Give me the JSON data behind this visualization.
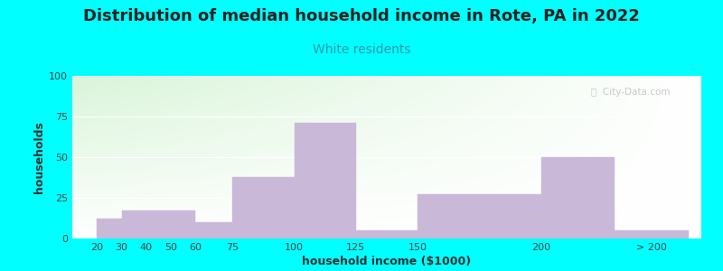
{
  "title": "Distribution of median household income in Rote, PA in 2022",
  "subtitle": "White residents",
  "xlabel": "household income ($1000)",
  "ylabel": "households",
  "bar_labels": [
    "20",
    "30",
    "40",
    "50",
    "60",
    "75",
    "100",
    "125",
    "150",
    "200",
    "> 200"
  ],
  "bar_values": [
    12,
    17,
    17,
    17,
    10,
    38,
    71,
    5,
    27,
    50,
    5
  ],
  "bar_color": "#c9b8d8",
  "bar_edgecolor": "#c9b8d8",
  "background_color": "#00ffff",
  "plot_bg_color_topleft": "#d8edcc",
  "plot_bg_color_topright": "#f0f0f8",
  "plot_bg_color_bottomleft": "#f0f8f0",
  "plot_bg_color_bottomright": "#ffffff",
  "ylim": [
    0,
    100
  ],
  "yticks": [
    0,
    25,
    50,
    75,
    100
  ],
  "title_fontsize": 13,
  "subtitle_fontsize": 10,
  "subtitle_color": "#3399aa",
  "axis_label_fontsize": 9,
  "tick_fontsize": 8,
  "watermark_text": "ⓘ  City-Data.com",
  "title_color": "#222222"
}
